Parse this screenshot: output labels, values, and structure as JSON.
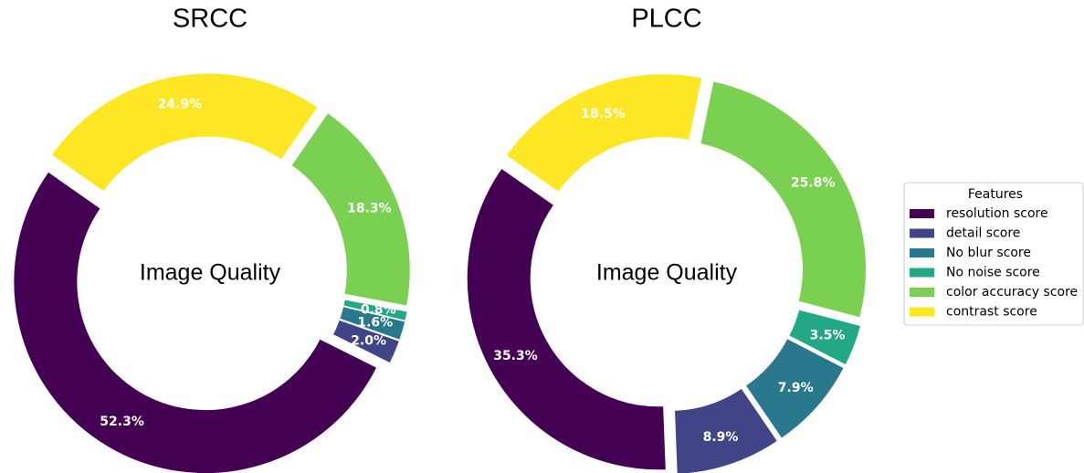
{
  "chart_data": [
    {
      "type": "donut",
      "title": "SRCC",
      "center_text": "Image Quality",
      "categories": [
        "resolution score",
        "detail score",
        "No blur score",
        "No noise score",
        "color accuracy score",
        "contrast score"
      ],
      "values": [
        52.3,
        2.0,
        1.6,
        0.8,
        18.3,
        24.9
      ],
      "value_labels": [
        "52.3%",
        "2.0%",
        "1.6%",
        "0.8%",
        "18.3%",
        "24.9%"
      ],
      "colors": [
        "#440154",
        "#414487",
        "#2a788e",
        "#22a884",
        "#7ad151",
        "#fde725"
      ]
    },
    {
      "type": "donut",
      "title": "PLCC",
      "center_text": "Image Quality",
      "categories": [
        "resolution score",
        "detail score",
        "No blur score",
        "No noise score",
        "color accuracy score",
        "contrast score"
      ],
      "values": [
        35.3,
        8.9,
        7.9,
        3.5,
        25.8,
        18.5
      ],
      "value_labels": [
        "35.3%",
        "8.9%",
        "7.9%",
        "3.5%",
        "25.8%",
        "18.5%"
      ],
      "colors": [
        "#440154",
        "#414487",
        "#2a788e",
        "#22a884",
        "#7ad151",
        "#fde725"
      ],
      "legend": {
        "title": "Features",
        "position": "right"
      }
    }
  ]
}
